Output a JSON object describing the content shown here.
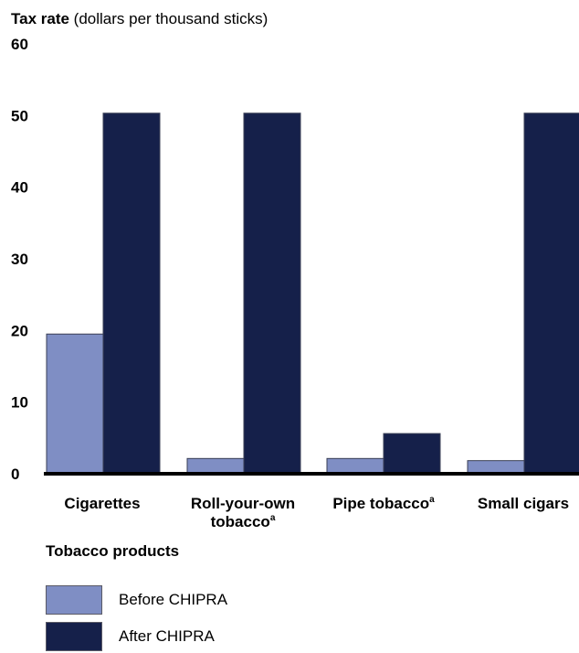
{
  "chart_data": {
    "type": "bar",
    "title_bold": "Tax rate",
    "title_rest": " (dollars per thousand sticks)",
    "xlabel": "Tobacco products",
    "ylim": [
      0,
      60
    ],
    "yticks": [
      0,
      10,
      20,
      30,
      40,
      50,
      60
    ],
    "categories": [
      {
        "lines": [
          "Cigarettes"
        ],
        "sup": ""
      },
      {
        "lines": [
          "Roll-your-own",
          "tobacco"
        ],
        "sup": "a"
      },
      {
        "lines": [
          "Pipe tobacco"
        ],
        "sup": "a"
      },
      {
        "lines": [
          "Small cigars"
        ],
        "sup": ""
      }
    ],
    "series": [
      {
        "name": "Before CHIPRA",
        "color": "#7f8ec4",
        "values": [
          19.5,
          2.13,
          2.13,
          1.83
        ]
      },
      {
        "name": "After CHIPRA",
        "color": "#15204a",
        "values": [
          50.33,
          50.33,
          5.61,
          50.33
        ]
      }
    ],
    "grid": false,
    "legend_position": "bottom-left"
  }
}
